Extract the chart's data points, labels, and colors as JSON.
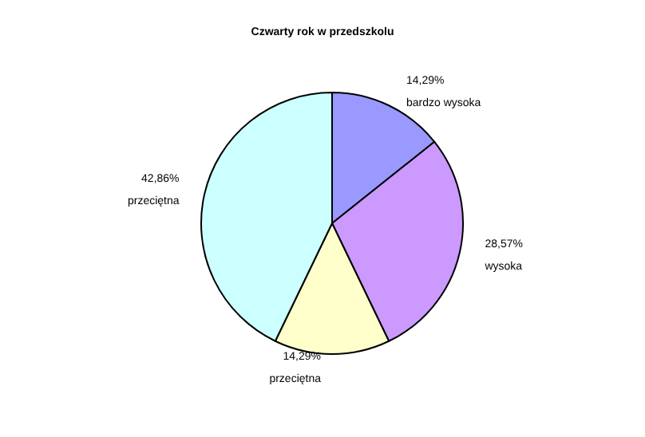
{
  "chart_data": {
    "type": "pie",
    "title": "Czwarty rok w przedszkolu",
    "categories": [
      "bardzo wysoka",
      "wysoka",
      "przeciętna",
      "przeciętna"
    ],
    "values": [
      14.29,
      28.57,
      14.29,
      42.86
    ],
    "value_labels": [
      "14,29%",
      "28,57%",
      "14,29%",
      "42,86%"
    ],
    "colors": [
      "#9999ff",
      "#cc99ff",
      "#ffffcc",
      "#ccffff"
    ],
    "legend": false
  }
}
